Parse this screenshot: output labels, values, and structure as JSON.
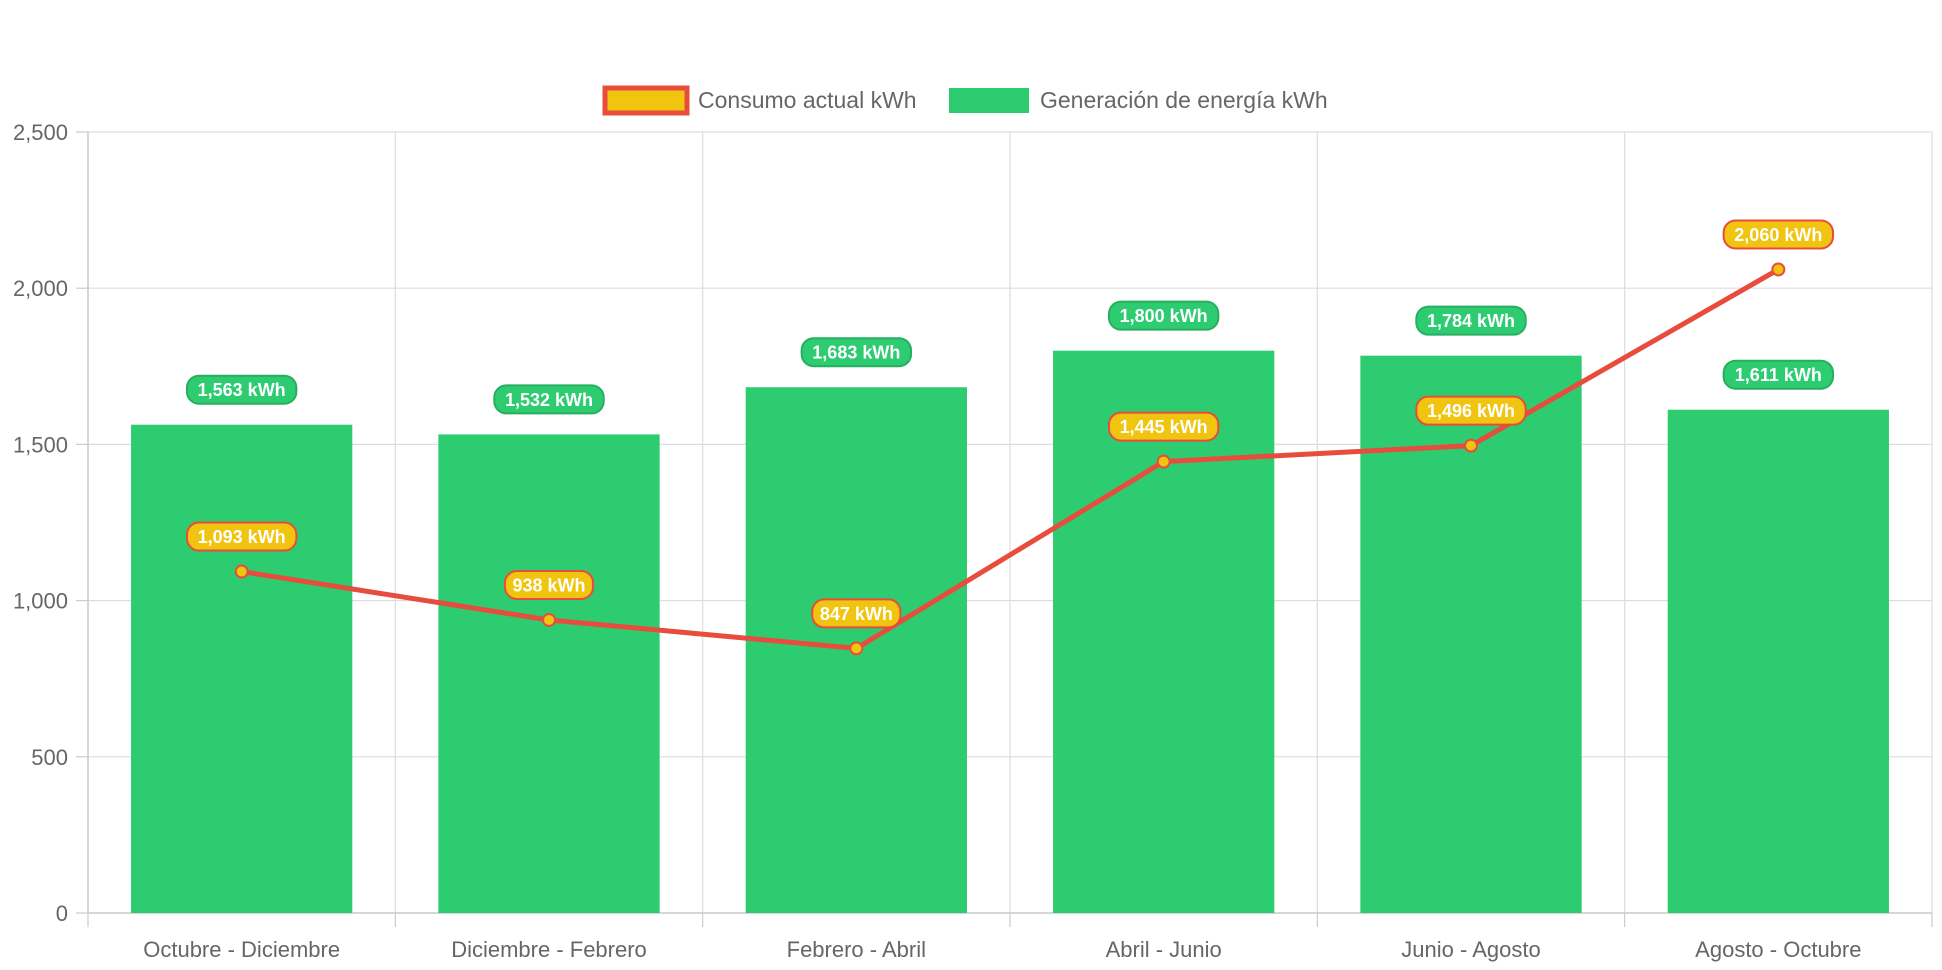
{
  "chart_data": {
    "type": "bar",
    "categories": [
      "Octubre - Diciembre",
      "Diciembre - Febrero",
      "Febrero - Abril",
      "Abril - Junio",
      "Junio - Agosto",
      "Agosto - Octubre"
    ],
    "series": [
      {
        "name": "Consumo actual kWh",
        "type": "line",
        "values": [
          1093,
          938,
          847,
          1445,
          1496,
          2060
        ],
        "labels": [
          "1,093 kWh",
          "938 kWh",
          "847 kWh",
          "1,445 kWh",
          "1,496 kWh",
          "2,060 kWh"
        ],
        "color": "#e74c3c",
        "fill_color": "#f1c40f"
      },
      {
        "name": "Generación de energía kWh",
        "type": "bar",
        "values": [
          1563,
          1532,
          1683,
          1800,
          1784,
          1611
        ],
        "labels": [
          "1,563 kWh",
          "1,532 kWh",
          "1,683 kWh",
          "1,800 kWh",
          "1,784 kWh",
          "1,611 kWh"
        ],
        "color": "#2ecc71"
      }
    ],
    "ylim": [
      0,
      2500
    ],
    "yticks": [
      0,
      500,
      1000,
      1500,
      2000,
      2500
    ],
    "ytick_labels": [
      "0",
      "500",
      "1,000",
      "1,500",
      "2,000",
      "2,500"
    ],
    "title": "",
    "xlabel": "",
    "ylabel": "",
    "grid": true,
    "legend_position": "top"
  }
}
